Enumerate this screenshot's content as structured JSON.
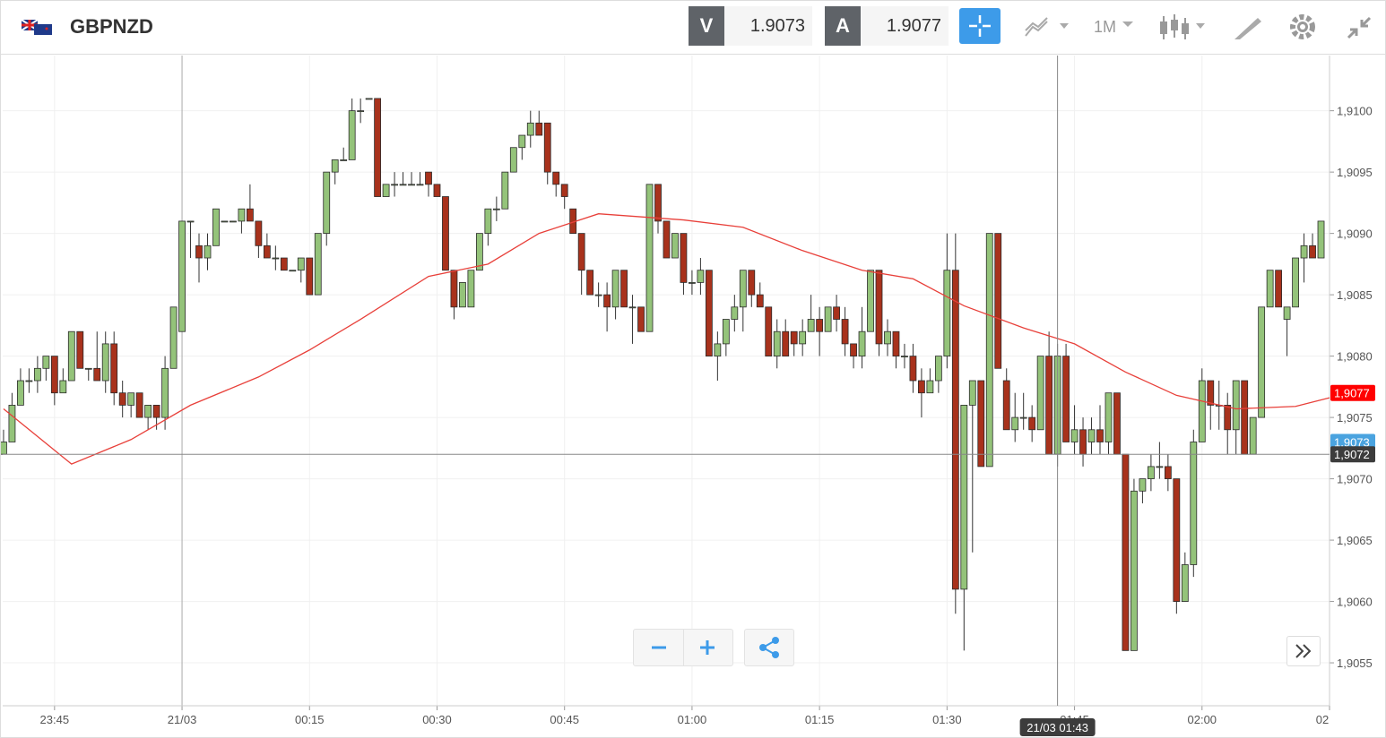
{
  "header": {
    "symbol": "GBPNZD",
    "sell_label": "V",
    "sell_price": "1.9073",
    "buy_label": "A",
    "buy_price": "1.9077",
    "timeframe": "1M"
  },
  "chart_data": {
    "type": "candlestick",
    "xlim": [
      -0.1,
      156
    ],
    "ylim": [
      1.90515,
      1.91045
    ],
    "yticks": [
      {
        "value": 1.91,
        "label": "1,9100"
      },
      {
        "value": 1.9095,
        "label": "1,9095"
      },
      {
        "value": 1.909,
        "label": "1,9090"
      },
      {
        "value": 1.9085,
        "label": "1,9085"
      },
      {
        "value": 1.908,
        "label": "1,9080"
      },
      {
        "value": 1.9075,
        "label": "1,9075"
      },
      {
        "value": 1.907,
        "label": "1,9070"
      },
      {
        "value": 1.9065,
        "label": "1,9065"
      },
      {
        "value": 1.906,
        "label": "1,9060"
      },
      {
        "value": 1.9055,
        "label": "1,9055"
      }
    ],
    "xticks": [
      {
        "value": 6,
        "label": "23:45"
      },
      {
        "value": 21,
        "label": "21/03"
      },
      {
        "value": 36,
        "label": "00:15"
      },
      {
        "value": 51,
        "label": "00:30"
      },
      {
        "value": 66,
        "label": "00:45"
      },
      {
        "value": 81,
        "label": "01:00"
      },
      {
        "value": 96,
        "label": "01:15"
      },
      {
        "value": 111,
        "label": "01:30"
      },
      {
        "value": 126,
        "label": "01:45"
      },
      {
        "value": 141,
        "label": "02:00"
      },
      {
        "value": 156,
        "label": "02"
      }
    ],
    "up_color": "#94c37a",
    "down_color": "#a8321c",
    "candles": [
      [
        1.9072,
        1.9074,
        1.9072,
        1.9073
      ],
      [
        1.9073,
        1.9077,
        1.9073,
        1.9076
      ],
      [
        1.9076,
        1.9079,
        1.9076,
        1.9078
      ],
      [
        1.9078,
        1.9079,
        1.9077,
        1.9078
      ],
      [
        1.9078,
        1.908,
        1.9077,
        1.9079
      ],
      [
        1.9079,
        1.908,
        1.9078,
        1.908
      ],
      [
        1.908,
        1.908,
        1.9076,
        1.9077
      ],
      [
        1.9077,
        1.9079,
        1.9077,
        1.9078
      ],
      [
        1.9078,
        1.9082,
        1.9078,
        1.9082
      ],
      [
        1.9082,
        1.9082,
        1.9079,
        1.9079
      ],
      [
        1.9079,
        1.9079,
        1.9078,
        1.9079
      ],
      [
        1.9079,
        1.9082,
        1.9078,
        1.9078
      ],
      [
        1.9078,
        1.9082,
        1.9077,
        1.9081
      ],
      [
        1.9081,
        1.9082,
        1.9076,
        1.9077
      ],
      [
        1.9077,
        1.9078,
        1.9075,
        1.9076
      ],
      [
        1.9076,
        1.9077,
        1.9075,
        1.9077
      ],
      [
        1.9077,
        1.9077,
        1.9075,
        1.9075
      ],
      [
        1.9075,
        1.9076,
        1.9074,
        1.9076
      ],
      [
        1.9076,
        1.9076,
        1.9074,
        1.9075
      ],
      [
        1.9075,
        1.908,
        1.9074,
        1.9079
      ],
      [
        1.9079,
        1.9084,
        1.9079,
        1.9084
      ],
      [
        1.9082,
        1.9091,
        1.9082,
        1.9091
      ],
      [
        1.9091,
        1.9091,
        1.9088,
        1.9091
      ],
      [
        1.9089,
        1.909,
        1.9086,
        1.9088
      ],
      [
        1.9088,
        1.909,
        1.9087,
        1.9089
      ],
      [
        1.9089,
        1.9092,
        1.9089,
        1.9092
      ],
      [
        1.9091,
        1.9091,
        1.9091,
        1.9091
      ],
      [
        1.9091,
        1.9091,
        1.9091,
        1.9091
      ],
      [
        1.9091,
        1.9092,
        1.909,
        1.9092
      ],
      [
        1.9092,
        1.9094,
        1.9091,
        1.9091
      ],
      [
        1.9091,
        1.9091,
        1.9088,
        1.9089
      ],
      [
        1.9089,
        1.909,
        1.9088,
        1.9088
      ],
      [
        1.9088,
        1.9089,
        1.9087,
        1.9088
      ],
      [
        1.9088,
        1.9088,
        1.9087,
        1.9087
      ],
      [
        1.9087,
        1.9087,
        1.9087,
        1.9087
      ],
      [
        1.9087,
        1.9088,
        1.9086,
        1.9088
      ],
      [
        1.9088,
        1.9088,
        1.9085,
        1.9085
      ],
      [
        1.9085,
        1.909,
        1.9085,
        1.909
      ],
      [
        1.909,
        1.9095,
        1.9089,
        1.9095
      ],
      [
        1.9095,
        1.9096,
        1.9094,
        1.9096
      ],
      [
        1.9096,
        1.9097,
        1.9096,
        1.9096
      ],
      [
        1.9096,
        1.9101,
        1.9096,
        1.91
      ],
      [
        1.91,
        1.9101,
        1.9099,
        1.91
      ],
      [
        1.9101,
        1.9101,
        1.9101,
        1.9101
      ],
      [
        1.9101,
        1.9101,
        1.9093,
        1.9093
      ],
      [
        1.9093,
        1.9094,
        1.9093,
        1.9094
      ],
      [
        1.9094,
        1.9095,
        1.9093,
        1.9094
      ],
      [
        1.9094,
        1.9095,
        1.9094,
        1.9094
      ],
      [
        1.9094,
        1.9095,
        1.9094,
        1.9094
      ],
      [
        1.9094,
        1.9095,
        1.9094,
        1.9094
      ],
      [
        1.9095,
        1.9095,
        1.9093,
        1.9094
      ],
      [
        1.9094,
        1.9094,
        1.9093,
        1.9093
      ],
      [
        1.9093,
        1.9093,
        1.9087,
        1.9087
      ],
      [
        1.9087,
        1.9087,
        1.9083,
        1.9084
      ],
      [
        1.9084,
        1.9086,
        1.9084,
        1.9086
      ],
      [
        1.9084,
        1.9087,
        1.9084,
        1.9087
      ],
      [
        1.9087,
        1.909,
        1.9087,
        1.909
      ],
      [
        1.909,
        1.9092,
        1.9089,
        1.9092
      ],
      [
        1.9092,
        1.9093,
        1.9091,
        1.9092
      ],
      [
        1.9092,
        1.9095,
        1.9092,
        1.9095
      ],
      [
        1.9095,
        1.9097,
        1.9095,
        1.9097
      ],
      [
        1.9097,
        1.9098,
        1.9096,
        1.9098
      ],
      [
        1.9098,
        1.91,
        1.9097,
        1.9099
      ],
      [
        1.9099,
        1.91,
        1.9098,
        1.9098
      ],
      [
        1.9099,
        1.9099,
        1.9094,
        1.9095
      ],
      [
        1.9095,
        1.9095,
        1.9093,
        1.9094
      ],
      [
        1.9094,
        1.9094,
        1.9092,
        1.9093
      ],
      [
        1.9092,
        1.9092,
        1.909,
        1.909
      ],
      [
        1.909,
        1.909,
        1.9085,
        1.9087
      ],
      [
        1.9087,
        1.9087,
        1.9085,
        1.9085
      ],
      [
        1.9085,
        1.9086,
        1.9084,
        1.9085
      ],
      [
        1.9085,
        1.9086,
        1.9082,
        1.9084
      ],
      [
        1.9084,
        1.9087,
        1.9083,
        1.9087
      ],
      [
        1.9087,
        1.9087,
        1.9084,
        1.9084
      ],
      [
        1.9084,
        1.9085,
        1.9081,
        1.9084
      ],
      [
        1.9084,
        1.9084,
        1.9082,
        1.9082
      ],
      [
        1.9082,
        1.9094,
        1.9082,
        1.9094
      ],
      [
        1.9094,
        1.9094,
        1.909,
        1.9091
      ],
      [
        1.9091,
        1.9091,
        1.9088,
        1.9088
      ],
      [
        1.9088,
        1.909,
        1.9088,
        1.909
      ],
      [
        1.909,
        1.909,
        1.9085,
        1.9086
      ],
      [
        1.9086,
        1.9087,
        1.9085,
        1.9086
      ],
      [
        1.9086,
        1.9088,
        1.9085,
        1.9087
      ],
      [
        1.9087,
        1.9087,
        1.908,
        1.908
      ],
      [
        1.908,
        1.9082,
        1.9078,
        1.9081
      ],
      [
        1.9081,
        1.9083,
        1.908,
        1.9083
      ],
      [
        1.9083,
        1.9085,
        1.9082,
        1.9084
      ],
      [
        1.9084,
        1.9087,
        1.9082,
        1.9087
      ],
      [
        1.9087,
        1.9087,
        1.9084,
        1.9085
      ],
      [
        1.9085,
        1.9086,
        1.9084,
        1.9084
      ],
      [
        1.9084,
        1.9084,
        1.908,
        1.908
      ],
      [
        1.908,
        1.9083,
        1.9079,
        1.9082
      ],
      [
        1.9082,
        1.9083,
        1.908,
        1.908
      ],
      [
        1.9082,
        1.9082,
        1.908,
        1.9081
      ],
      [
        1.9081,
        1.9083,
        1.908,
        1.9082
      ],
      [
        1.9082,
        1.9085,
        1.9082,
        1.9083
      ],
      [
        1.9083,
        1.9084,
        1.908,
        1.9082
      ],
      [
        1.9082,
        1.9084,
        1.9082,
        1.9084
      ],
      [
        1.9084,
        1.9085,
        1.9082,
        1.9083
      ],
      [
        1.9083,
        1.9084,
        1.908,
        1.9081
      ],
      [
        1.9081,
        1.9081,
        1.9079,
        1.908
      ],
      [
        1.908,
        1.9084,
        1.9079,
        1.9082
      ],
      [
        1.9082,
        1.9087,
        1.9082,
        1.9087
      ],
      [
        1.9087,
        1.9087,
        1.908,
        1.9081
      ],
      [
        1.9081,
        1.9083,
        1.908,
        1.9082
      ],
      [
        1.9082,
        1.9082,
        1.9079,
        1.908
      ],
      [
        1.908,
        1.9081,
        1.9079,
        1.908
      ],
      [
        1.908,
        1.9081,
        1.9077,
        1.9078
      ],
      [
        1.9078,
        1.9079,
        1.9075,
        1.9077
      ],
      [
        1.9077,
        1.9079,
        1.9077,
        1.9078
      ],
      [
        1.9078,
        1.908,
        1.9077,
        1.908
      ],
      [
        1.908,
        1.909,
        1.9079,
        1.9087
      ],
      [
        1.9087,
        1.909,
        1.9059,
        1.9061
      ],
      [
        1.9061,
        1.9076,
        1.9056,
        1.9076
      ],
      [
        1.9076,
        1.9078,
        1.9064,
        1.9078
      ],
      [
        1.9078,
        1.9078,
        1.9071,
        1.9071
      ],
      [
        1.9071,
        1.909,
        1.9071,
        1.909
      ],
      [
        1.909,
        1.909,
        1.9079,
        1.9079
      ],
      [
        1.9078,
        1.9079,
        1.9074,
        1.9074
      ],
      [
        1.9074,
        1.9077,
        1.9073,
        1.9075
      ],
      [
        1.9075,
        1.9077,
        1.9074,
        1.9075
      ],
      [
        1.9075,
        1.9076,
        1.9073,
        1.9074
      ],
      [
        1.9074,
        1.908,
        1.9074,
        1.908
      ],
      [
        1.908,
        1.9082,
        1.9072,
        1.9072
      ],
      [
        1.9072,
        1.9081,
        1.9071,
        1.908
      ],
      [
        1.908,
        1.9081,
        1.9073,
        1.9073
      ],
      [
        1.9073,
        1.9076,
        1.9072,
        1.9074
      ],
      [
        1.9074,
        1.9075,
        1.9071,
        1.9072
      ],
      [
        1.9073,
        1.9075,
        1.9072,
        1.9074
      ],
      [
        1.9074,
        1.9076,
        1.9072,
        1.9073
      ],
      [
        1.9073,
        1.9077,
        1.9072,
        1.9077
      ],
      [
        1.9077,
        1.9077,
        1.9072,
        1.9072
      ],
      [
        1.9072,
        1.9072,
        1.9056,
        1.9056
      ],
      [
        1.9056,
        1.907,
        1.9056,
        1.9069
      ],
      [
        1.9069,
        1.907,
        1.9068,
        1.907
      ],
      [
        1.907,
        1.9072,
        1.9069,
        1.9071
      ],
      [
        1.9071,
        1.9073,
        1.907,
        1.9071
      ],
      [
        1.9071,
        1.9072,
        1.9069,
        1.907
      ],
      [
        1.907,
        1.907,
        1.9059,
        1.906
      ],
      [
        1.906,
        1.9064,
        1.906,
        1.9063
      ],
      [
        1.9063,
        1.9074,
        1.9062,
        1.9073
      ],
      [
        1.9073,
        1.9079,
        1.9073,
        1.9078
      ],
      [
        1.9078,
        1.9078,
        1.9074,
        1.9076
      ],
      [
        1.9076,
        1.9078,
        1.9074,
        1.9076
      ],
      [
        1.9076,
        1.9077,
        1.9072,
        1.9074
      ],
      [
        1.9074,
        1.9078,
        1.9072,
        1.9078
      ],
      [
        1.9078,
        1.9078,
        1.9072,
        1.9072
      ],
      [
        1.9072,
        1.9075,
        1.9072,
        1.9075
      ],
      [
        1.9075,
        1.9084,
        1.9075,
        1.9084
      ],
      [
        1.9084,
        1.9087,
        1.9084,
        1.9087
      ],
      [
        1.9087,
        1.9087,
        1.9084,
        1.9084
      ],
      [
        1.9083,
        1.9084,
        1.908,
        1.9084
      ],
      [
        1.9084,
        1.9088,
        1.9084,
        1.9088
      ],
      [
        1.9088,
        1.909,
        1.9086,
        1.9089
      ],
      [
        1.9089,
        1.909,
        1.9088,
        1.9088
      ],
      [
        1.9088,
        1.9091,
        1.9088,
        1.9091
      ]
    ],
    "moving_average": {
      "color": "#e8403a",
      "x": [
        0,
        8,
        15,
        22,
        30,
        36,
        42,
        50,
        57,
        63,
        70,
        80,
        87,
        94,
        101,
        107,
        113,
        120,
        126,
        132,
        138,
        145,
        152,
        156
      ],
      "values": [
        1.90757,
        1.90712,
        1.90732,
        1.9076,
        1.90783,
        1.90805,
        1.9083,
        1.90865,
        1.90875,
        1.909,
        1.90916,
        1.90911,
        1.90905,
        1.90886,
        1.9087,
        1.90863,
        1.90841,
        1.90823,
        1.9081,
        1.90787,
        1.90768,
        1.90757,
        1.90759,
        1.90766
      ]
    },
    "price_tags": [
      {
        "value": 1.9077,
        "label": "1,9077",
        "color": "#ff0000"
      },
      {
        "value": 1.9073,
        "label": "1,9073",
        "color": "#4aa3df"
      }
    ],
    "crosshair": {
      "x": 124,
      "y": 1.9072,
      "x_label": "21/03 01:43",
      "y_label": "1,9072"
    }
  }
}
